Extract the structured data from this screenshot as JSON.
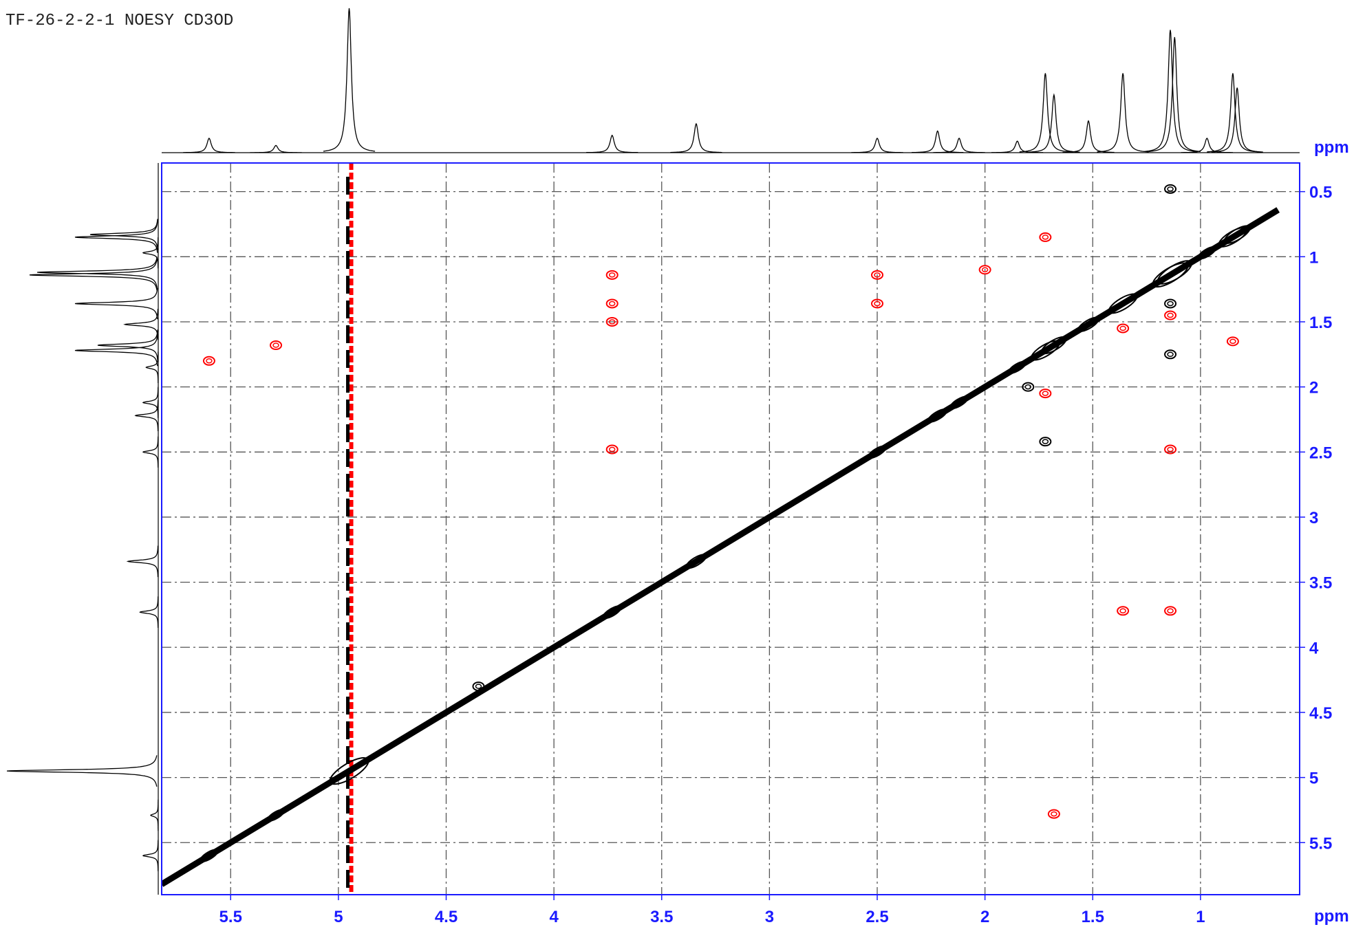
{
  "chart_data": {
    "type": "nmr2d",
    "title": "TF-26-2-2-1 NOESY CD3OD",
    "x_label": "ppm",
    "y_label": "ppm",
    "xlim": [
      5.82,
      0.54
    ],
    "ylim": [
      0.28,
      5.9
    ],
    "xticks": [
      5.5,
      5.0,
      4.5,
      4.0,
      3.5,
      3.0,
      2.5,
      2.0,
      1.5,
      1.0
    ],
    "yticks": [
      0.5,
      1.0,
      1.5,
      2.0,
      2.5,
      3.0,
      3.5,
      4.0,
      4.5,
      5.0,
      5.5
    ],
    "axis_color": "#1a1aff",
    "grid": true,
    "spectrum": {
      "ppm": [
        5.6,
        5.29,
        4.95,
        3.73,
        3.34,
        2.5,
        2.22,
        2.12,
        1.85,
        1.72,
        1.68,
        1.52,
        1.36,
        1.14,
        1.12,
        0.97,
        0.85,
        0.83
      ],
      "height": [
        10,
        5,
        100,
        12,
        20,
        10,
        15,
        10,
        8,
        55,
        40,
        22,
        55,
        85,
        80,
        10,
        55,
        45
      ]
    },
    "t1_noise_ppm": 4.95,
    "series": [
      {
        "color": "#ff0000",
        "x": [
          3.73,
          3.73,
          3.73,
          2.5,
          2.5,
          5.6,
          5.29,
          1.72,
          1.36,
          1.14,
          1.36,
          1.14,
          1.68,
          0.85,
          1.14,
          3.73,
          1.72,
          2.0
        ],
        "y": [
          1.14,
          1.36,
          1.5,
          1.14,
          1.36,
          1.8,
          1.68,
          2.05,
          1.55,
          2.48,
          3.72,
          3.72,
          5.28,
          1.65,
          1.45,
          2.48,
          0.85,
          1.1
        ]
      },
      {
        "color": "#000000",
        "x": [
          1.14,
          1.8,
          1.14,
          1.72,
          1.14,
          4.35
        ],
        "y": [
          0.48,
          2.0,
          1.75,
          2.42,
          1.36,
          4.3
        ]
      }
    ]
  }
}
